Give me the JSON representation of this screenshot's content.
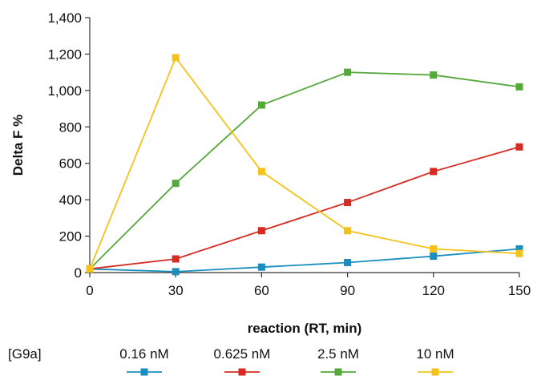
{
  "chart_data": {
    "type": "line",
    "title": "",
    "xlabel": "reaction (RT, min)",
    "ylabel": "Delta F %",
    "x": [
      0,
      30,
      60,
      90,
      120,
      150
    ],
    "xlim": [
      0,
      150
    ],
    "ylim": [
      0,
      1400
    ],
    "x_ticks": [
      "0",
      "30",
      "60",
      "90",
      "120",
      "150"
    ],
    "y_ticks": [
      "0",
      "200",
      "400",
      "600",
      "800",
      "1,000",
      "1,200",
      "1,400"
    ],
    "grid": false,
    "legend_position": "bottom",
    "legend_title": "[G9a]",
    "series": [
      {
        "name": "0.16 nM",
        "color": "#1a8fbf",
        "values": [
          20,
          5,
          30,
          55,
          90,
          130
        ]
      },
      {
        "name": "0.625 nM",
        "color": "#d52b23",
        "values": [
          20,
          75,
          230,
          385,
          555,
          690
        ]
      },
      {
        "name": "2.5 nM",
        "color": "#55a83a",
        "values": [
          20,
          490,
          920,
          1100,
          1085,
          1020
        ]
      },
      {
        "name": "10 nM",
        "color": "#f5c21a",
        "values": [
          20,
          1180,
          555,
          230,
          130,
          105
        ]
      }
    ]
  }
}
